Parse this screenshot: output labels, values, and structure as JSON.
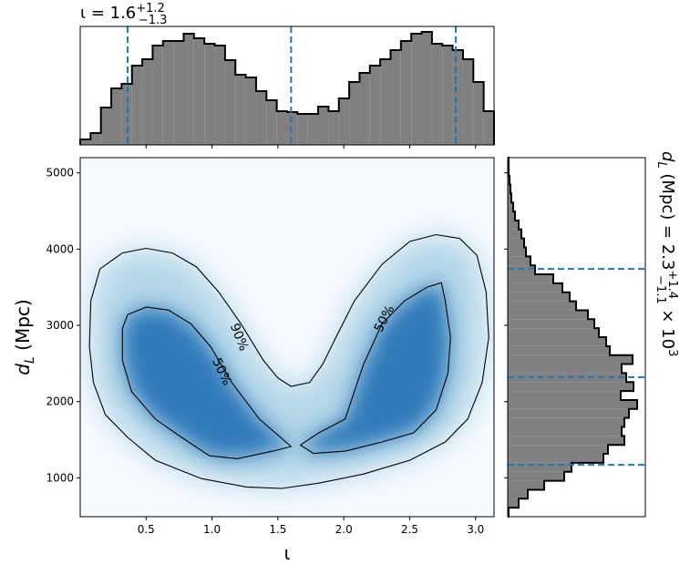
{
  "chart_data": [
    {
      "type": "histogram",
      "orientation": "vertical",
      "title": {
        "base": "ι = 1.6",
        "sup": "+1.2",
        "sub": "−1.3"
      },
      "bins": [
        0,
        0.0785,
        0.157,
        0.2355,
        0.314,
        0.3925,
        0.471,
        0.5495,
        0.628,
        0.7065,
        0.785,
        0.8635,
        0.942,
        1.0205,
        1.099,
        1.1775,
        1.256,
        1.3345,
        1.413,
        1.4915,
        1.57,
        1.6485,
        1.727,
        1.8055,
        1.884,
        1.9625,
        2.041,
        2.1195,
        2.198,
        2.2765,
        2.355,
        2.4335,
        2.512,
        2.5905,
        2.669,
        2.7475,
        2.826,
        2.9045,
        2.983,
        3.0615,
        3.14
      ],
      "counts": [
        6,
        13,
        41,
        62,
        67,
        87,
        94,
        109,
        114,
        114,
        122,
        117,
        111,
        109,
        93,
        77,
        74,
        59,
        49,
        37,
        36,
        34,
        34,
        42,
        37,
        51,
        69,
        79,
        87,
        94,
        104,
        114,
        122,
        124,
        111,
        109,
        104,
        94,
        69,
        37
      ],
      "color": "#808080",
      "xlim": [
        0,
        3.14
      ],
      "ylim": [
        0,
        130
      ],
      "markers": [
        0.36,
        1.6,
        2.85
      ],
      "marker_color": "#1f77b4"
    },
    {
      "type": "contour",
      "x_label": "ι",
      "y_label": {
        "base": "d",
        "sub": "L",
        "rest": " (Mpc)"
      },
      "xlim": [
        0,
        3.14
      ],
      "ylim": [
        490,
        5200
      ],
      "xticks": [
        0.5,
        {
          "value": 1,
          "label": "1.0"
        },
        1.5,
        {
          "value": 2,
          "label": "2.0"
        },
        2.5,
        {
          "value": 3,
          "label": "3.0"
        }
      ],
      "yticks": [
        1000,
        2000,
        3000,
        4000,
        5000
      ],
      "cmap": [
        "#f7fbff",
        "#9ecae1",
        "#2171b5"
      ],
      "contours": [
        {
          "label": "90%",
          "x": [
            0.08,
            0.15,
            0.32,
            0.5,
            0.7,
            0.88,
            1.05,
            1.22,
            1.39,
            1.5,
            1.6,
            1.74,
            1.84,
            1.94,
            2.08,
            2.29,
            2.5,
            2.7,
            2.88,
            3.01,
            3.08,
            3.1,
            3.05,
            2.94,
            2.77,
            2.5,
            2.15,
            1.81,
            1.53,
            1.26,
            0.92,
            0.57,
            0.36,
            0.19,
            0.1,
            0.07
          ],
          "y": [
            3320,
            3740,
            3950,
            4010,
            3950,
            3770,
            3440,
            3020,
            2540,
            2310,
            2200,
            2250,
            2490,
            2840,
            3320,
            3800,
            4100,
            4190,
            4140,
            3920,
            3440,
            2840,
            2250,
            1770,
            1470,
            1230,
            1050,
            930,
            860,
            880,
            990,
            1230,
            1530,
            1830,
            2250,
            2720
          ]
        },
        {
          "label": "50%",
          "x": [
            0.32,
            0.36,
            0.5,
            0.67,
            0.84,
            0.99,
            1.15,
            1.36,
            1.6,
            1.46,
            1.19,
            0.98,
            0.77,
            0.57,
            0.39,
            0.32
          ],
          "y": [
            2960,
            3140,
            3240,
            3200,
            3020,
            2720,
            2250,
            1770,
            1410,
            1350,
            1250,
            1290,
            1530,
            1770,
            2130,
            2540
          ]
        },
        {
          "label": "50%",
          "x": [
            1.67,
            1.81,
            2.01,
            2.15,
            2.29,
            2.46,
            2.63,
            2.74,
            2.77,
            2.81,
            2.79,
            2.7,
            2.53,
            2.29,
            2.01,
            1.77
          ],
          "y": [
            1430,
            1590,
            1770,
            2490,
            3020,
            3320,
            3500,
            3560,
            3320,
            2840,
            2370,
            1890,
            1590,
            1470,
            1350,
            1320
          ]
        }
      ]
    },
    {
      "type": "histogram",
      "orientation": "horizontal",
      "title": {
        "base": "d",
        "base_sub": "L",
        "mid": " (Mpc) = 2.3",
        "sup": "+1.4",
        "sub": "−1.1",
        "tail": " × 10",
        "tail_sup": "3"
      },
      "bins": [
        490,
        607.75,
        725.5,
        843.25,
        961,
        1078.75,
        1196.5,
        1314.25,
        1432,
        1549.75,
        1667.5,
        1785.25,
        1903,
        2020.75,
        2138.5,
        2256.25,
        2374,
        2491.75,
        2609.5,
        2727.25,
        2845,
        2962.75,
        3080.5,
        3198.25,
        3316,
        3433.75,
        3551.5,
        3669.25,
        3787,
        3904.75,
        4022.5,
        4140.25,
        4258,
        4375.75,
        4493.5,
        4611.25,
        4729,
        4846.75,
        4964.5,
        5082.25,
        5200
      ],
      "counts": [
        1,
        12,
        22,
        40,
        62,
        70,
        105,
        110,
        128,
        125,
        128,
        133,
        142,
        124,
        138,
        130,
        125,
        137,
        112,
        108,
        100,
        95,
        88,
        75,
        68,
        60,
        50,
        30,
        25,
        20,
        18,
        15,
        12,
        8,
        6,
        4,
        3,
        2,
        1,
        1
      ],
      "color": "#808080",
      "xlim": [
        0,
        151
      ],
      "ylim": [
        490,
        5200
      ],
      "markers": [
        1170,
        2320,
        3740
      ],
      "marker_color": "#1f77b4"
    }
  ]
}
